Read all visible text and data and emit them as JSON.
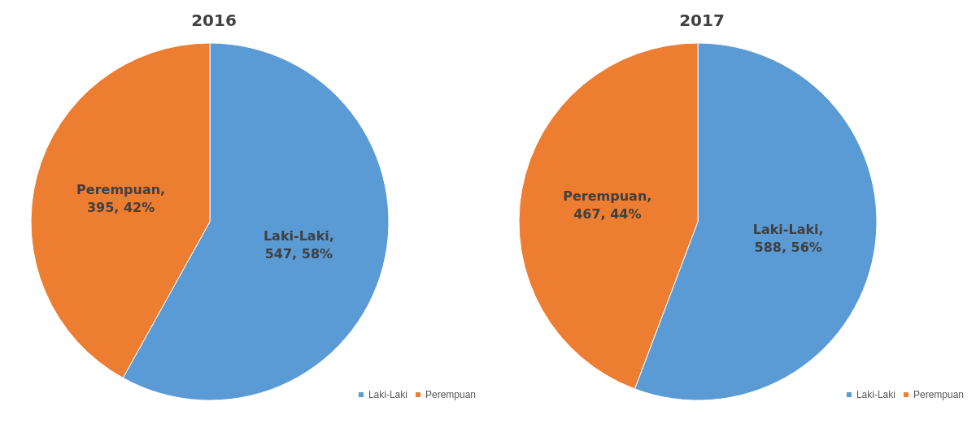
{
  "chart_data": [
    {
      "type": "pie",
      "title": "2016",
      "categories": [
        "Laki-Laki",
        "Perempuan"
      ],
      "values": [
        547,
        395
      ],
      "value_labels": [
        "Laki-Laki, 547, 58%",
        "Perempuan, 395, 42%"
      ],
      "colors": [
        "#5b9bd5",
        "#ed7d31"
      ],
      "legend": "bottom right"
    },
    {
      "type": "pie",
      "title": "2017",
      "categories": [
        "Laki-Laki",
        "Perempuan"
      ],
      "values": [
        588,
        467
      ],
      "value_labels": [
        "Laki-Laki, 588, 56%",
        "Perempuan, 467, 44%"
      ],
      "colors": [
        "#5b9bd5",
        "#ed7d31"
      ],
      "legend": "bottom right"
    }
  ]
}
